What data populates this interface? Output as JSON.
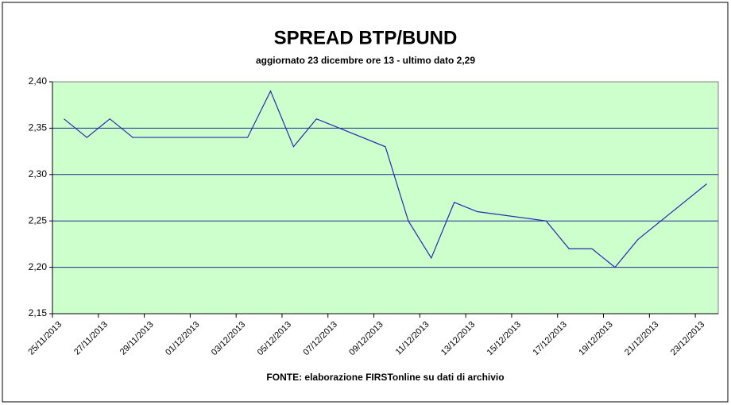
{
  "chart_data": {
    "type": "line",
    "title": "SPREAD BTP/BUND",
    "subtitle": "aggiornato 23 dicembre ore 13  - ultimo dato 2,29",
    "source": "FONTE:  elaborazione FIRSTonline su dati di archivio",
    "x": [
      "2013-11-25",
      "2013-11-26",
      "2013-11-27",
      "2013-11-28",
      "2013-12-03",
      "2013-12-04",
      "2013-12-05",
      "2013-12-06",
      "2013-12-09",
      "2013-12-10",
      "2013-12-11",
      "2013-12-12",
      "2013-12-13",
      "2013-12-16",
      "2013-12-17",
      "2013-12-18",
      "2013-12-19",
      "2013-12-20",
      "2013-12-23"
    ],
    "series": [
      {
        "name": "spread",
        "color": "#2a2ab0",
        "values": [
          2.36,
          2.34,
          2.36,
          2.34,
          2.34,
          2.39,
          2.33,
          2.36,
          2.33,
          2.25,
          2.21,
          2.27,
          2.26,
          2.25,
          2.22,
          2.22,
          2.2,
          2.23,
          2.29
        ]
      }
    ],
    "xlim": [
      "2013-11-25",
      "2013-12-24"
    ],
    "xticks": [
      {
        "value": "2013-11-25",
        "label": "25/11/2013"
      },
      {
        "value": "2013-11-27",
        "label": "27/11/2013"
      },
      {
        "value": "2013-11-29",
        "label": "29/11/2013"
      },
      {
        "value": "2013-12-01",
        "label": "01/12/2013"
      },
      {
        "value": "2013-12-03",
        "label": "03/12/2013"
      },
      {
        "value": "2013-12-05",
        "label": "05/12/2013"
      },
      {
        "value": "2013-12-07",
        "label": "07/12/2013"
      },
      {
        "value": "2013-12-09",
        "label": "09/12/2013"
      },
      {
        "value": "2013-12-11",
        "label": "11/12/2013"
      },
      {
        "value": "2013-12-13",
        "label": "13/12/2013"
      },
      {
        "value": "2013-12-15",
        "label": "15/12/2013"
      },
      {
        "value": "2013-12-17",
        "label": "17/12/2013"
      },
      {
        "value": "2013-12-19",
        "label": "19/12/2013"
      },
      {
        "value": "2013-12-21",
        "label": "21/12/2013"
      },
      {
        "value": "2013-12-23",
        "label": "23/12/2013"
      }
    ],
    "ylim": [
      2.15,
      2.4
    ],
    "yticks": [
      {
        "value": 2.15,
        "label": "2,15"
      },
      {
        "value": 2.2,
        "label": "2,20"
      },
      {
        "value": 2.25,
        "label": "2,25"
      },
      {
        "value": 2.3,
        "label": "2,30"
      },
      {
        "value": 2.35,
        "label": "2,35"
      },
      {
        "value": 2.4,
        "label": "2,40"
      }
    ],
    "grid": true,
    "plot_background": "#ccffcc"
  }
}
